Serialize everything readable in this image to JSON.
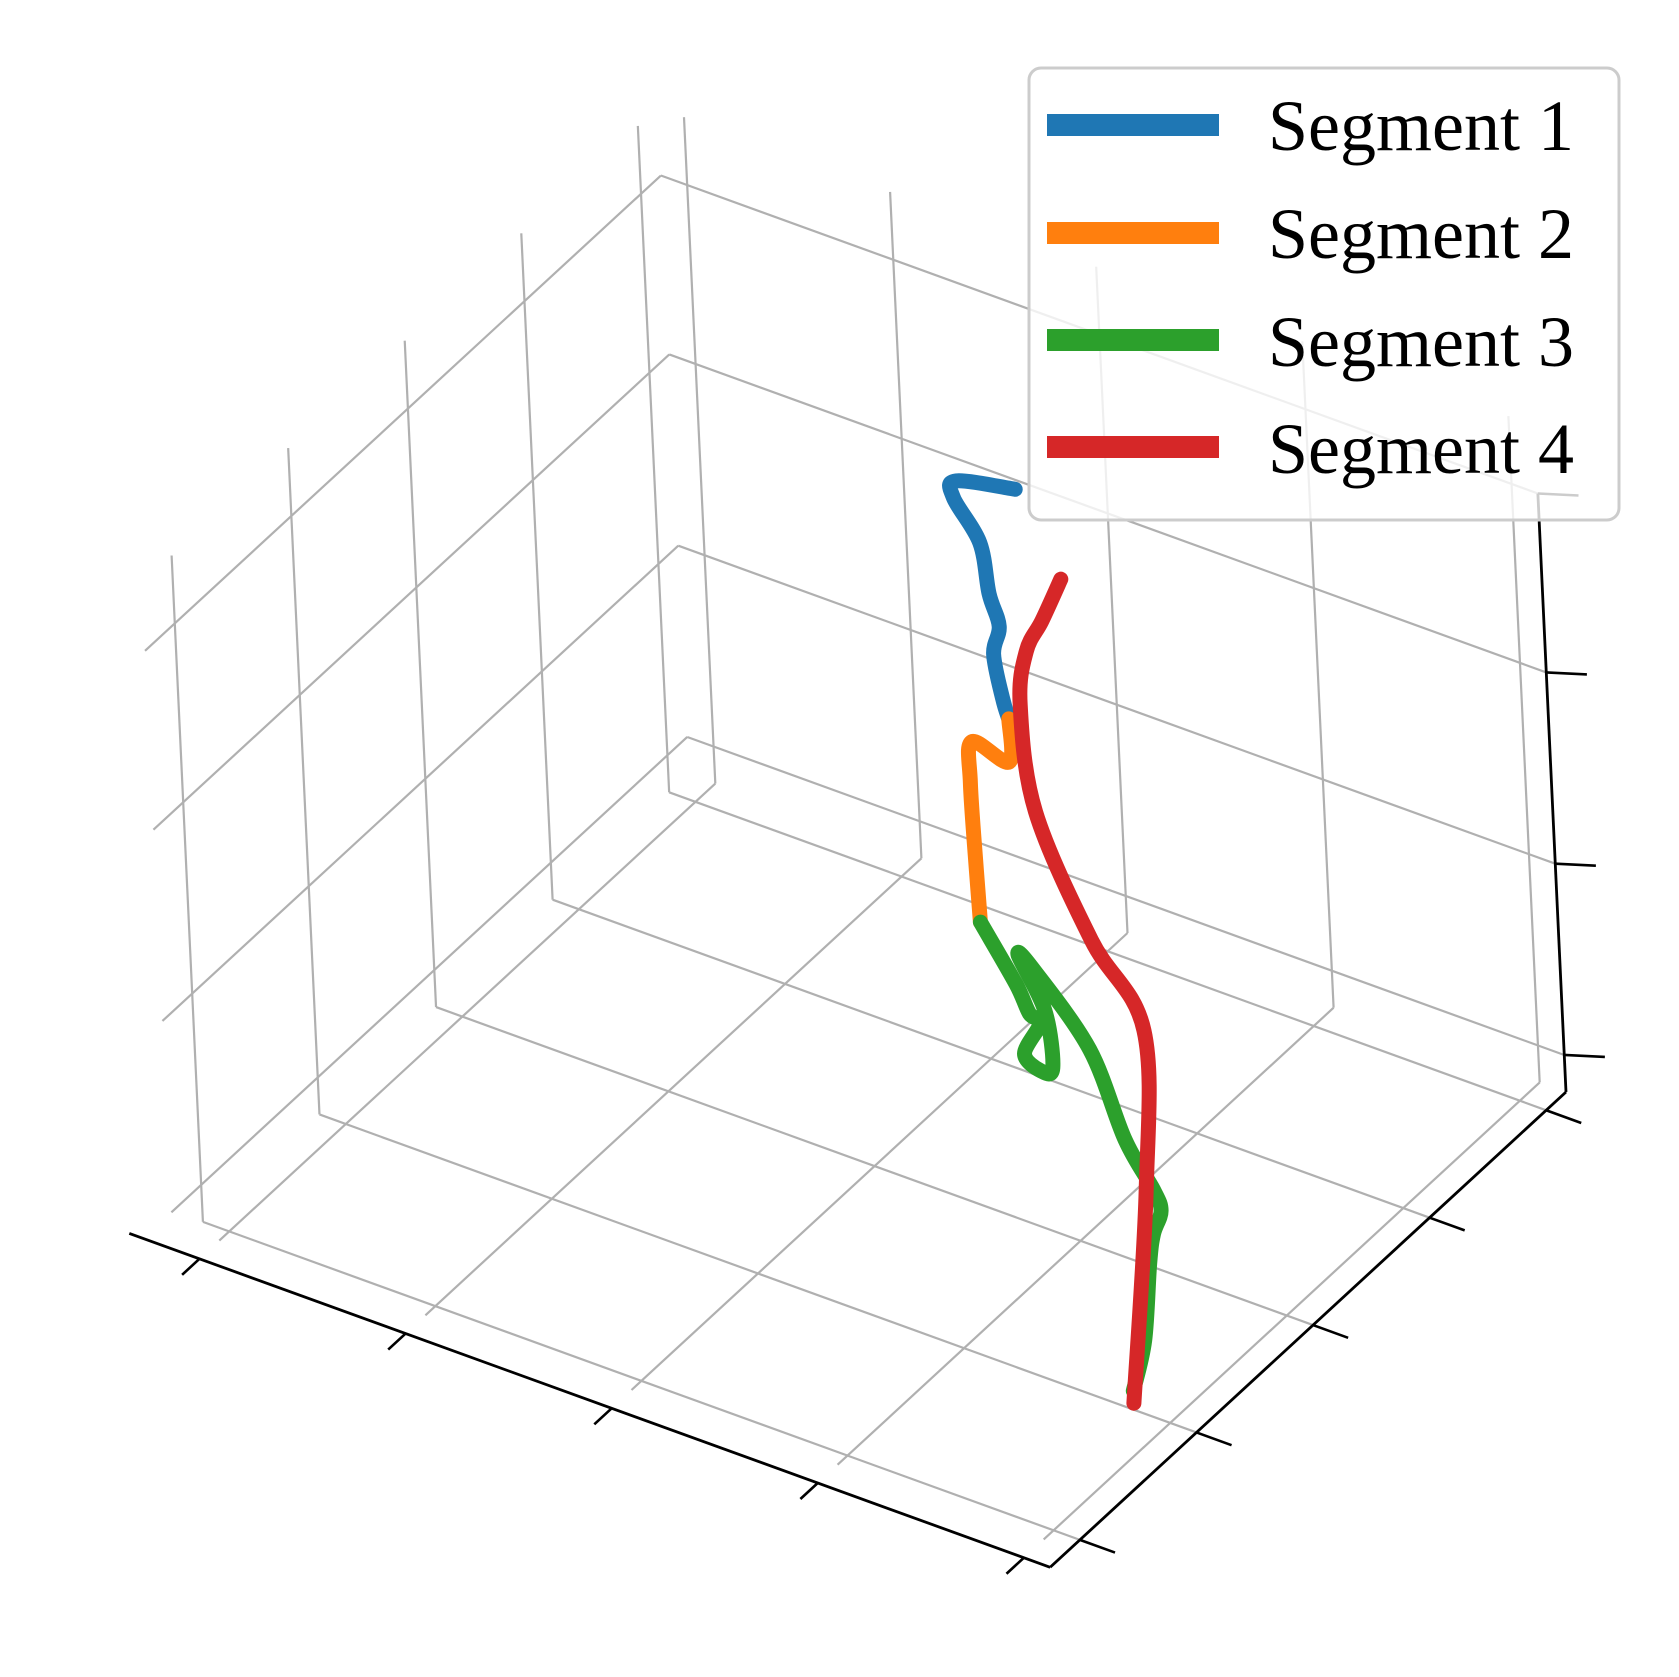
{
  "chart_data": {
    "type": "line",
    "projection": "3d",
    "title": "",
    "xlabel": "",
    "ylabel": "",
    "zlabel": "",
    "tick_labels_shown": false,
    "grid": true,
    "legend_position": "top-right",
    "colors": {
      "Segment 1": "#1f77b4",
      "Segment 2": "#ff7f0e",
      "Segment 3": "#2ca02c",
      "Segment 4": "#d62728",
      "grid": "#b0b0b0",
      "axis": "#000000"
    },
    "series": [
      {
        "name": "Segment 1",
        "points": [
          [
            0.58,
            0.69,
            0.99
          ],
          [
            0.53,
            0.66,
            1.0
          ],
          [
            0.52,
            0.67,
            0.96
          ],
          [
            0.53,
            0.7,
            0.87
          ],
          [
            0.52,
            0.73,
            0.76
          ],
          [
            0.5,
            0.78,
            0.66
          ],
          [
            0.48,
            0.8,
            0.59
          ],
          [
            0.47,
            0.83,
            0.49
          ],
          [
            0.47,
            0.84,
            0.45
          ]
        ]
      },
      {
        "name": "Segment 2",
        "points": [
          [
            0.47,
            0.84,
            0.45
          ],
          [
            0.48,
            0.82,
            0.4
          ],
          [
            0.42,
            0.85,
            0.38
          ],
          [
            0.41,
            0.86,
            0.3
          ],
          [
            0.43,
            0.83,
            0.2
          ],
          [
            0.45,
            0.8,
            0.14
          ]
        ]
      },
      {
        "name": "Segment 3",
        "points": [
          [
            0.45,
            0.8,
            0.14
          ],
          [
            0.5,
            0.78,
            0.08
          ],
          [
            0.52,
            0.77,
            0.05
          ],
          [
            0.52,
            0.79,
            0.02
          ],
          [
            0.5,
            0.79,
            -0.04
          ],
          [
            0.5,
            0.82,
            -0.09
          ],
          [
            0.49,
            0.86,
            -0.12
          ],
          [
            0.49,
            0.85,
            -0.02
          ],
          [
            0.51,
            0.77,
            0.14
          ],
          [
            0.6,
            0.65,
            0.25
          ],
          [
            0.75,
            0.5,
            0.31
          ],
          [
            0.87,
            0.36,
            0.33
          ],
          [
            0.96,
            0.26,
            0.37
          ],
          [
            0.98,
            0.24,
            0.36
          ],
          [
            1.0,
            0.19,
            0.37
          ],
          [
            1.0,
            0.18,
            0.33
          ],
          [
            0.99,
            0.18,
            0.2
          ],
          [
            0.98,
            0.17,
            0.12
          ]
        ]
      },
      {
        "name": "Segment 4",
        "points": [
          [
            0.98,
            0.17,
            0.1
          ],
          [
            1.0,
            0.18,
            0.45
          ],
          [
            1.0,
            0.19,
            0.7
          ],
          [
            0.86,
            0.33,
            0.67
          ],
          [
            0.7,
            0.5,
            0.67
          ],
          [
            0.61,
            0.63,
            0.7
          ],
          [
            0.59,
            0.68,
            0.74
          ],
          [
            0.61,
            0.68,
            0.8
          ],
          [
            0.64,
            0.67,
            0.89
          ]
        ]
      }
    ]
  }
}
